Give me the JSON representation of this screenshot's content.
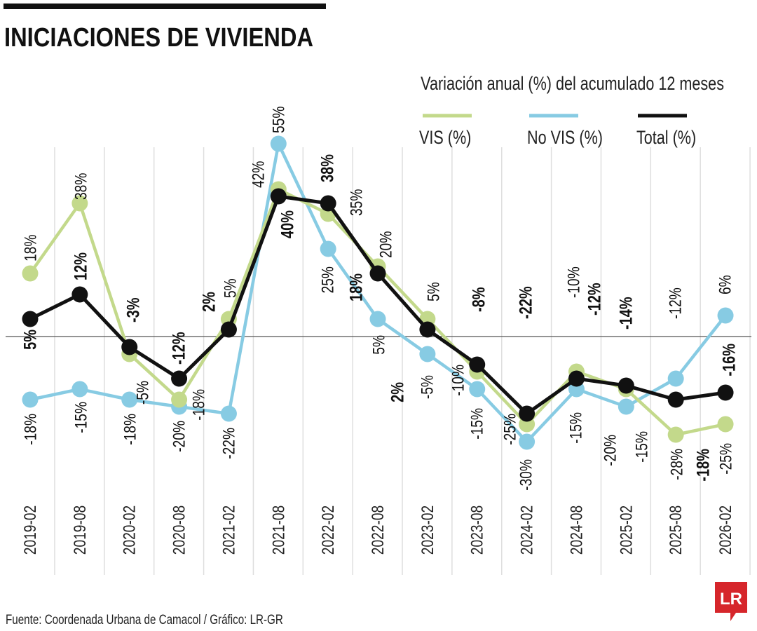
{
  "header": {
    "title": "INICIACIONES DE VIVIENDA",
    "subtitle": "Variación anual (%) del acumulado 12 meses"
  },
  "footer": {
    "source": "Fuente: Coordenada Urbana de Camacol / Gráfico: LR-GR",
    "logo_text": "LR",
    "logo_color": "#d6262b"
  },
  "chart_data": {
    "type": "line",
    "title": "INICIACIONES DE VIVIENDA",
    "subtitle": "Variación anual (%) del acumulado 12 meses",
    "categories": [
      "2019-02",
      "2019-08",
      "2020-02",
      "2020-08",
      "2021-02",
      "2021-08",
      "2022-02",
      "2022-08",
      "2023-02",
      "2023-08",
      "2024-02",
      "2024-08",
      "2025-02",
      "2025-08",
      "2026-02"
    ],
    "ylim": [
      -30,
      55
    ],
    "grid": "vertical",
    "legend": "top-right",
    "series": [
      {
        "name": "VIS (%)",
        "color": "#c3d98b",
        "values": [
          18,
          38,
          -5,
          -18,
          5,
          42,
          35,
          20,
          5,
          -10,
          -25,
          -10,
          -15,
          -28,
          -25
        ]
      },
      {
        "name": "No VIS (%)",
        "color": "#87cbe3",
        "values": [
          -18,
          -15,
          -18,
          -20,
          -22,
          55,
          25,
          5,
          -5,
          -15,
          -30,
          -15,
          -20,
          -12,
          6
        ]
      },
      {
        "name": "Total (%)",
        "color": "#111111",
        "values": [
          5,
          12,
          -3,
          -12,
          2,
          40,
          38,
          18,
          2,
          -8,
          -22,
          -12,
          -14,
          -18,
          -16
        ]
      }
    ]
  }
}
